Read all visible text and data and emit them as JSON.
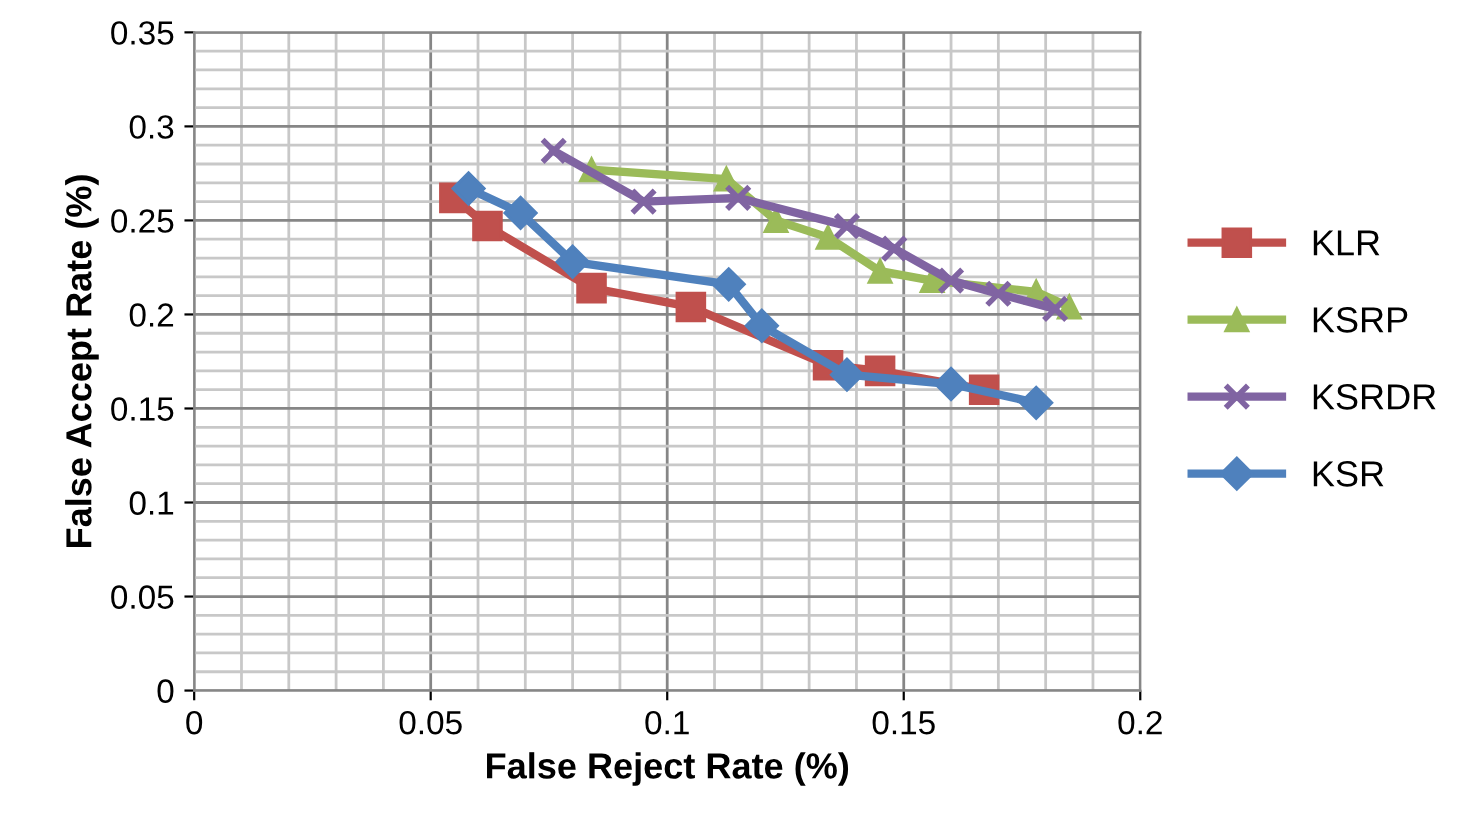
{
  "chart_data": {
    "type": "line",
    "xlabel": "False Reject Rate (%)",
    "ylabel": "False Accept Rate (%)",
    "xlim": [
      0,
      0.2
    ],
    "xticks": [
      0,
      0.05,
      0.1,
      0.15,
      0.2
    ],
    "ylim": [
      0,
      0.35
    ],
    "yticks": [
      0,
      0.05,
      0.1,
      0.15,
      0.2,
      0.25,
      0.3,
      0.35
    ],
    "grid": true,
    "legend": "right",
    "line_style": "solid",
    "series": [
      {
        "name": "KLR",
        "color": "#c0504d",
        "marker": "square",
        "x": [
          0.055,
          0.062,
          0.084,
          0.105,
          0.134,
          0.145,
          0.167
        ],
        "values": [
          0.262,
          0.247,
          0.214,
          0.204,
          0.173,
          0.17,
          0.16
        ]
      },
      {
        "name": "KSRP",
        "color": "#9bbb59",
        "marker": "triangle",
        "x": [
          0.084,
          0.1125,
          0.123,
          0.134,
          0.145,
          0.156,
          0.178,
          0.185
        ],
        "values": [
          0.277,
          0.272,
          0.25,
          0.241,
          0.223,
          0.218,
          0.212,
          0.204
        ]
      },
      {
        "name": "KSRDR",
        "color": "#8064a2",
        "marker": "cross",
        "x": [
          0.076,
          0.095,
          0.115,
          0.138,
          0.148,
          0.16,
          0.17,
          0.182
        ],
        "values": [
          0.287,
          0.26,
          0.262,
          0.247,
          0.235,
          0.218,
          0.211,
          0.203
        ]
      },
      {
        "name": "KSR",
        "color": "#4f81bd",
        "marker": "diamond",
        "x": [
          0.058,
          0.069,
          0.08,
          0.113,
          0.12,
          0.138,
          0.16,
          0.178
        ],
        "values": [
          0.267,
          0.254,
          0.228,
          0.216,
          0.194,
          0.168,
          0.163,
          0.153
        ]
      }
    ]
  }
}
